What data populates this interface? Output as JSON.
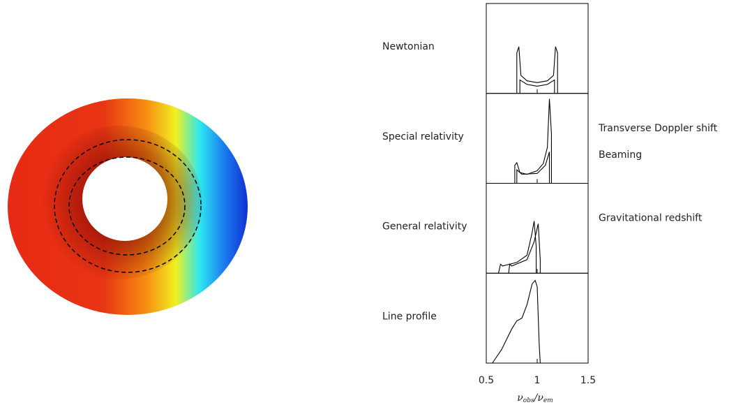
{
  "chart_data": {
    "type": "line",
    "xlim": [
      0.5,
      1.5
    ],
    "xticks": [
      0.5,
      1,
      1.5
    ],
    "x_label": [
      "ν",
      "obs",
      "/ν",
      "em"
    ],
    "panels": [
      {
        "label": "Newtonian",
        "ylim": [
          0,
          1
        ],
        "series": [
          {
            "color": "#000000",
            "x": [
              0.8,
              0.8,
              0.82,
              0.84,
              0.9,
              1.0,
              1.1,
              1.16,
              1.18,
              1.2,
              1.2
            ],
            "values": [
              0,
              0.45,
              0.52,
              0.2,
              0.14,
              0.12,
              0.14,
              0.2,
              0.52,
              0.45,
              0
            ]
          },
          {
            "color": "#000000",
            "x": [
              0.83,
              0.83,
              0.9,
              1.0,
              1.1,
              1.17,
              1.17
            ],
            "values": [
              0,
              0.15,
              0.1,
              0.08,
              0.1,
              0.15,
              0
            ]
          }
        ]
      },
      {
        "label": "Special relativity",
        "annotations": [
          "Transverse Doppler shift",
          "Beaming"
        ],
        "ylim": [
          0,
          1
        ],
        "series": [
          {
            "color": "#000000",
            "x": [
              0.78,
              0.78,
              0.8,
              0.83,
              0.9,
              1.0,
              1.06,
              1.1,
              1.12,
              1.14,
              1.14
            ],
            "values": [
              0,
              0.2,
              0.23,
              0.12,
              0.1,
              0.14,
              0.22,
              0.4,
              0.94,
              0.55,
              0
            ]
          },
          {
            "color": "#000000",
            "x": [
              0.8,
              0.8,
              0.85,
              1.0,
              1.08,
              1.12,
              1.12
            ],
            "values": [
              0,
              0.15,
              0.1,
              0.11,
              0.2,
              0.35,
              0
            ]
          }
        ]
      },
      {
        "label": "General relativity",
        "annotations": [
          "Gravitational redshift"
        ],
        "ylim": [
          0,
          1
        ],
        "series": [
          {
            "color": "#000000",
            "x": [
              0.62,
              0.64,
              0.66,
              0.8,
              0.9,
              0.95,
              0.97,
              0.99,
              0.99
            ],
            "values": [
              0,
              0.1,
              0.08,
              0.12,
              0.2,
              0.45,
              0.58,
              0.3,
              0
            ]
          },
          {
            "color": "#000000",
            "x": [
              0.72,
              0.73,
              0.75,
              0.9,
              0.97,
              1.01,
              1.03,
              1.03
            ],
            "values": [
              0,
              0.1,
              0.08,
              0.15,
              0.35,
              0.55,
              0.15,
              0
            ]
          }
        ]
      },
      {
        "label": "Line profile",
        "ylim": [
          0,
          1
        ],
        "series": [
          {
            "color": "#000000",
            "x": [
              0.56,
              0.65,
              0.75,
              0.8,
              0.85,
              0.9,
              0.95,
              0.98,
              1.0,
              1.02,
              1.03
            ],
            "values": [
              0,
              0.15,
              0.38,
              0.47,
              0.5,
              0.65,
              0.88,
              0.92,
              0.85,
              0.2,
              0
            ]
          }
        ]
      }
    ]
  }
}
